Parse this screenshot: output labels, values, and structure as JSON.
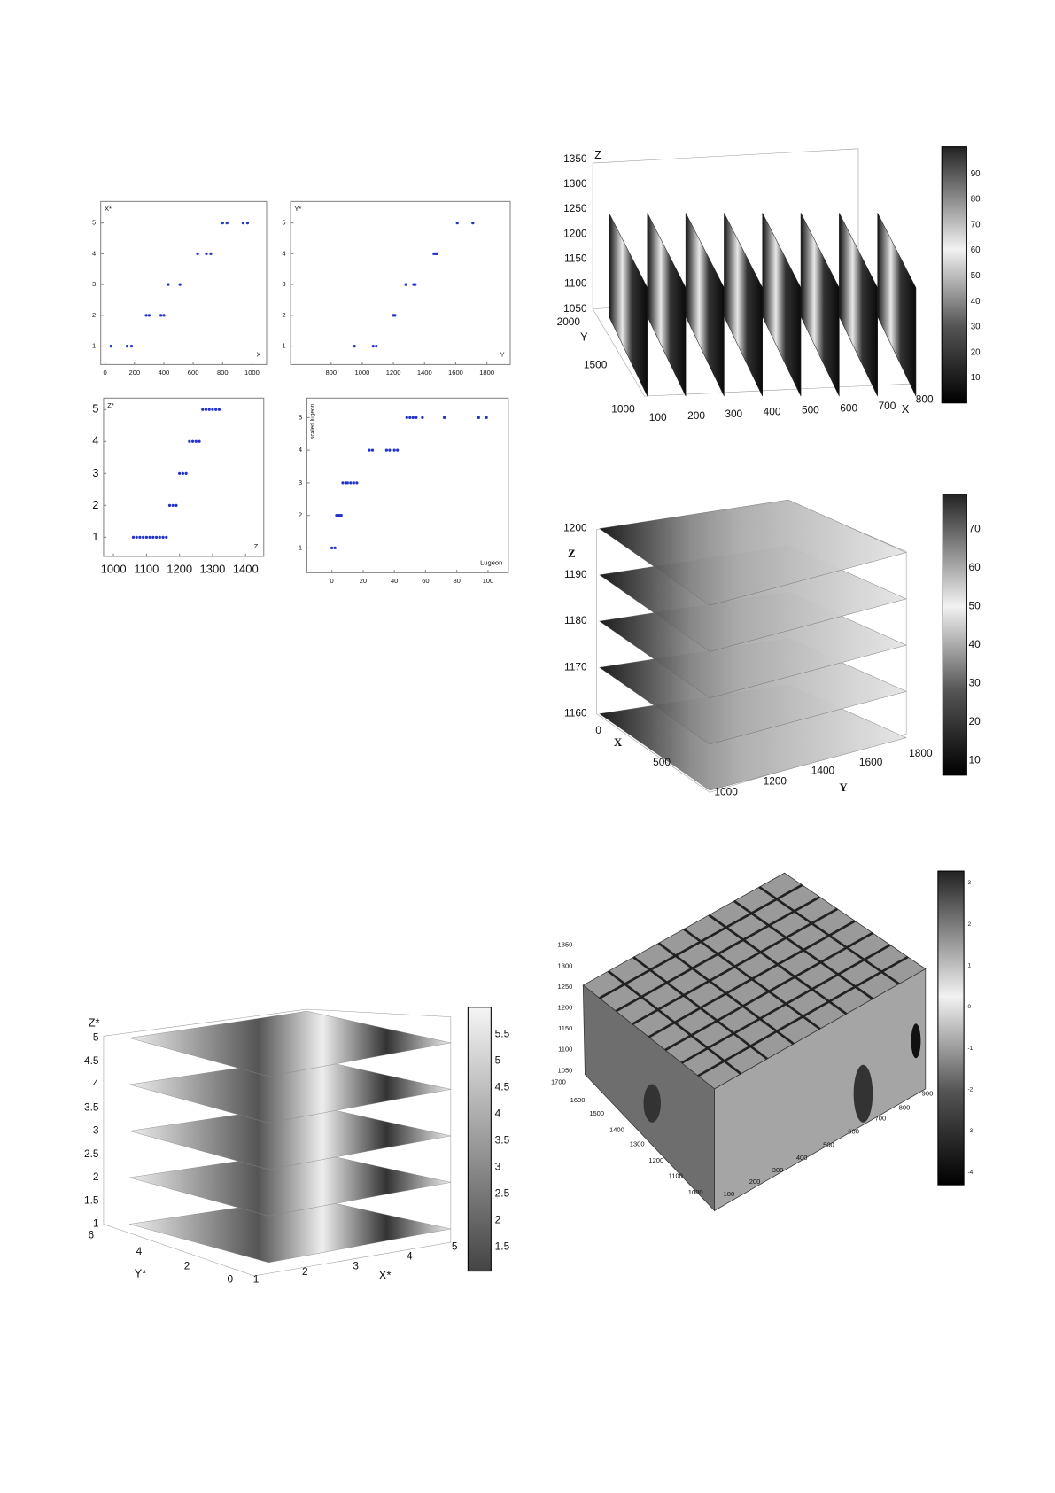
{
  "chart_data": [
    {
      "type": "scatter",
      "y_label": "X*",
      "x_label": "X",
      "color": "#2233cc",
      "x": [
        40,
        150,
        180,
        280,
        300,
        380,
        400,
        430,
        510,
        630,
        690,
        720,
        800,
        830,
        940,
        970
      ],
      "values": [
        1,
        1,
        1,
        2,
        2,
        2,
        2,
        3,
        3,
        4,
        4,
        4,
        5,
        5,
        5,
        5
      ],
      "xlim": [
        -30,
        1100
      ],
      "ylim": [
        0.4,
        5.7
      ],
      "xticks": [
        0,
        200,
        400,
        600,
        800,
        1000
      ],
      "yticks": [
        1,
        2,
        3,
        4,
        5
      ]
    },
    {
      "type": "scatter",
      "y_label": "Y*",
      "x_label": "Y",
      "color": "#2233cc",
      "x": [
        950,
        1070,
        1090,
        1200,
        1210,
        1280,
        1330,
        1340,
        1460,
        1470,
        1480,
        1610,
        1710
      ],
      "values": [
        1,
        1,
        1,
        2,
        2,
        3,
        3,
        3,
        4,
        4,
        4,
        5,
        5
      ],
      "xlim": [
        540,
        1950
      ],
      "ylim": [
        0.4,
        5.7
      ],
      "xticks": [
        800,
        1000,
        1200,
        1400,
        1600,
        1800
      ],
      "yticks": [
        1,
        2,
        3,
        4,
        5
      ]
    },
    {
      "type": "scatter",
      "y_label": "Z*",
      "x_label": "Z",
      "color": "#2233cc",
      "x": [
        1060,
        1070,
        1080,
        1090,
        1100,
        1110,
        1120,
        1130,
        1140,
        1150,
        1160,
        1170,
        1180,
        1190,
        1200,
        1210,
        1220,
        1230,
        1240,
        1250,
        1260,
        1270,
        1280,
        1290,
        1300,
        1310,
        1320
      ],
      "values": [
        1,
        1,
        1,
        1,
        1,
        1,
        1,
        1,
        1,
        1,
        1,
        2,
        2,
        2,
        3,
        3,
        3,
        4,
        4,
        4,
        4,
        5,
        5,
        5,
        5,
        5,
        5
      ],
      "xlim": [
        970,
        1455
      ],
      "ylim": [
        0.4,
        5.36
      ],
      "xticks": [
        1000,
        1100,
        1200,
        1300,
        1400
      ],
      "yticks": [
        1,
        2,
        3,
        4,
        5
      ]
    },
    {
      "type": "scatter",
      "y_label": "scaled lugeon",
      "x_label": "Lugeon",
      "color": "#2233cc",
      "x": [
        0,
        2,
        3,
        4,
        5,
        6,
        7,
        9,
        10,
        12,
        14,
        16,
        24,
        26,
        35,
        37,
        40,
        42,
        48,
        50,
        52,
        54,
        58,
        72,
        94,
        99
      ],
      "values": [
        1,
        1,
        2,
        2,
        2,
        2,
        3,
        3,
        3,
        3,
        3,
        3,
        4,
        4,
        4,
        4,
        4,
        4,
        5,
        5,
        5,
        5,
        5,
        5,
        5,
        5
      ],
      "xlim": [
        -16,
        113
      ],
      "ylim": [
        0.24,
        5.6
      ],
      "xticks": [
        0,
        20,
        40,
        60,
        80,
        100
      ],
      "yticks": [
        1,
        2,
        3,
        4,
        5
      ]
    }
  ],
  "figures": [
    {
      "zlabel": "Z",
      "ylabel": "Y",
      "xlabel": "X",
      "zticks": [
        1050,
        1100,
        1150,
        1200,
        1250,
        1300,
        1350
      ],
      "yticks": [
        2000,
        1500,
        1000
      ],
      "xticks": [
        100,
        200,
        300,
        400,
        500,
        600,
        700,
        800
      ],
      "colorbar_ticks": [
        10,
        20,
        30,
        40,
        50,
        60,
        70,
        80,
        90
      ]
    },
    {
      "zlabel": "Z",
      "ylabel": "Y",
      "xlabel": "X",
      "zticks": [
        1160,
        1170,
        1180,
        1190,
        1200
      ],
      "xticks": [
        0,
        500
      ],
      "yticks": [
        1000,
        1200,
        1400,
        1600,
        1800
      ],
      "colorbar_ticks": [
        10,
        20,
        30,
        40,
        50,
        60,
        70
      ]
    },
    {
      "zlabel": "Z*",
      "ylabel": "Y*",
      "xlabel": "X*",
      "zticks": [
        1,
        1.5,
        2,
        2.5,
        3,
        3.5,
        4,
        4.5,
        5
      ],
      "yticks": [
        6,
        4,
        2,
        0
      ],
      "xticks": [
        1,
        2,
        3,
        4,
        5
      ],
      "colorbar_ticks": [
        1.5,
        2,
        2.5,
        3,
        3.5,
        4,
        4.5,
        5,
        5.5
      ]
    },
    {
      "zticks": [
        1050,
        1100,
        1150,
        1200,
        1250,
        1300,
        1350
      ],
      "yticks": [
        1700,
        1600,
        1500,
        1400,
        1300,
        1200,
        1100,
        1000
      ],
      "xticks": [
        100,
        200,
        300,
        400,
        500,
        600,
        700,
        800,
        900
      ],
      "colorbar_ticks": [
        -4,
        -3,
        -2,
        -1,
        0,
        1,
        2,
        3
      ]
    }
  ]
}
